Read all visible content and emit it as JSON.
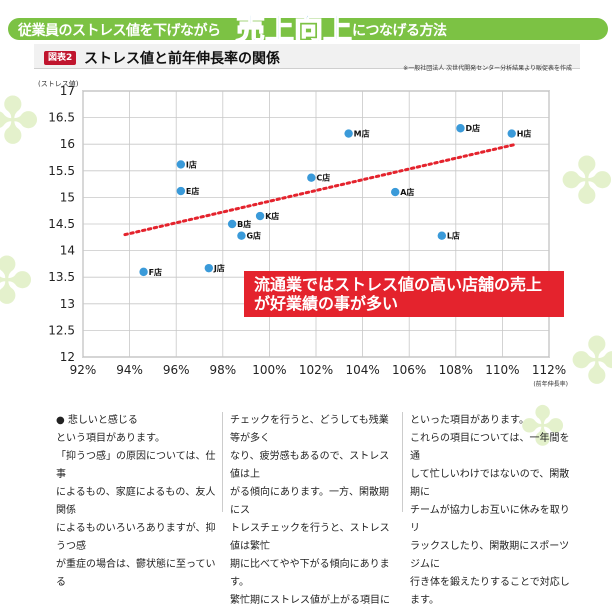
{
  "header": {
    "lead": "従業員のストレス値を下げながら",
    "highlight": "売上向上",
    "trail": "につなげる方法"
  },
  "figure": {
    "badge": "図表2",
    "title": "ストレス値と前年伸長率の関係",
    "source": "※一般社団法人 次世代開発センター分析結果より販促表を作成"
  },
  "callout": {
    "line1": "流通業ではストレス値の高い店舗の売上",
    "line2": "が好業績の事が多い"
  },
  "chart_data": {
    "type": "scatter",
    "ylabel": "(ストレス値)",
    "xlabel": "(前年伸長率)",
    "xlim": [
      92,
      112
    ],
    "ylim": [
      12,
      17
    ],
    "x_ticks": [
      "92%",
      "94%",
      "96%",
      "98%",
      "100%",
      "102%",
      "104%",
      "106%",
      "108%",
      "110%",
      "112%"
    ],
    "y_ticks": [
      "12",
      "12.5",
      "13",
      "13.5",
      "14",
      "14.5",
      "15",
      "15.5",
      "16",
      "16.5",
      "17"
    ],
    "points": [
      {
        "label": "A店",
        "x": 105.4,
        "y": 15.1
      },
      {
        "label": "B店",
        "x": 98.4,
        "y": 14.5
      },
      {
        "label": "C店",
        "x": 101.8,
        "y": 15.37
      },
      {
        "label": "D店",
        "x": 108.2,
        "y": 16.3
      },
      {
        "label": "E店",
        "x": 96.2,
        "y": 15.12
      },
      {
        "label": "F店",
        "x": 94.6,
        "y": 13.6
      },
      {
        "label": "G店",
        "x": 98.8,
        "y": 14.28
      },
      {
        "label": "H店",
        "x": 110.4,
        "y": 16.2
      },
      {
        "label": "I店",
        "x": 96.2,
        "y": 15.62
      },
      {
        "label": "J店",
        "x": 97.4,
        "y": 13.67
      },
      {
        "label": "K店",
        "x": 99.6,
        "y": 14.65
      },
      {
        "label": "L店",
        "x": 107.4,
        "y": 14.28
      },
      {
        "label": "M店",
        "x": 103.4,
        "y": 16.2
      }
    ],
    "trendline": {
      "x": [
        93.8,
        110.6
      ],
      "y": [
        14.3,
        16.0
      ]
    },
    "colors": {
      "point": "#3a9ad9",
      "trend": "#e4232d",
      "grid": "#c8c8c8"
    }
  },
  "body": {
    "col1": [
      "● 悲しいと感じる",
      "という項目があります。",
      "「抑うつ感」の原因については、仕事",
      "によるもの、家庭によるもの、友人関係",
      "によるものいろいろありますが、抑うつ感",
      "が重症の場合は、鬱状態に至っている"
    ],
    "col2": [
      "チェックを行うと、どうしても残業等が多く",
      "なり、疲労感もあるので、ストレス値は上",
      "がる傾向にあります。一方、閑散期にス",
      "トレスチェックを行うと、ストレス値は繁忙",
      "期に比べてやや下がる傾向にあります。",
      "繁忙期にストレス値が上がる項目に"
    ],
    "col3": [
      "といった項目があります。",
      "これらの項目については、一年間を通",
      "して忙しいわけではないので、閑散期に",
      "チームが協力しお互いに休みを取りリ",
      "ラックスしたり、閑散期にスポーツジムに",
      "行き体を鍛えたりすることで対応します。"
    ]
  }
}
